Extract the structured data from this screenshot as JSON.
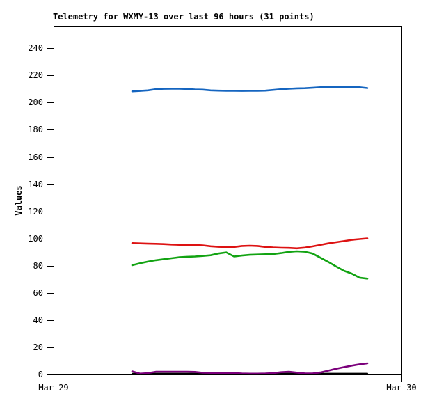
{
  "window": {
    "background": "#ffffff"
  },
  "chart_data": {
    "type": "line",
    "title": "Telemetry for WXMY-13 over last 96 hours (31 points)",
    "ylabel": "Values",
    "xlabel": "",
    "ylim": [
      0,
      256
    ],
    "y_ticks": [
      0,
      20,
      40,
      60,
      80,
      100,
      120,
      140,
      160,
      180,
      200,
      220,
      240
    ],
    "x_ticks": [
      {
        "label": "Mar 29",
        "frac": 0
      },
      {
        "label": "Mar 30",
        "frac": 1
      }
    ],
    "n_points": 31,
    "grid": false,
    "legend": "none",
    "axis_color": "#000000",
    "layout_hints": {
      "data_x_start_frac": 0.226,
      "data_x_end_frac": 0.902
    },
    "series": [
      {
        "name": "blue",
        "color": "#1565c0",
        "values": [
          208.3,
          208.6,
          209.0,
          209.8,
          210.1,
          210.2,
          210.2,
          210.0,
          209.6,
          209.5,
          209.0,
          208.8,
          208.7,
          208.7,
          208.6,
          208.7,
          208.7,
          208.8,
          209.3,
          209.8,
          210.2,
          210.5,
          210.6,
          210.9,
          211.3,
          211.5,
          211.5,
          211.4,
          211.3,
          211.3,
          210.7
        ]
      },
      {
        "name": "red",
        "color": "#dd1212",
        "values": [
          96.6,
          96.4,
          96.2,
          96.1,
          95.9,
          95.6,
          95.4,
          95.3,
          95.3,
          95.0,
          94.3,
          93.9,
          93.7,
          93.8,
          94.5,
          94.7,
          94.5,
          93.8,
          93.4,
          93.2,
          93.1,
          92.8,
          93.3,
          94.2,
          95.3,
          96.4,
          97.3,
          98.1,
          99.0,
          99.6,
          100.1
        ]
      },
      {
        "name": "green",
        "color": "#12a312",
        "values": [
          80.4,
          81.8,
          83.0,
          84.0,
          84.8,
          85.5,
          86.2,
          86.6,
          86.8,
          87.2,
          87.7,
          89.0,
          89.8,
          86.8,
          87.5,
          88.0,
          88.2,
          88.4,
          88.6,
          89.3,
          90.2,
          90.6,
          90.3,
          89.0,
          85.9,
          82.8,
          79.5,
          76.3,
          74.2,
          71.2,
          70.5
        ]
      },
      {
        "name": "black",
        "color": "#000000",
        "values": [
          0.7,
          0.7,
          0.7,
          0.7,
          0.7,
          0.7,
          0.7,
          0.7,
          0.7,
          0.7,
          0.7,
          0.7,
          0.7,
          0.7,
          0.7,
          0.7,
          0.7,
          0.7,
          0.7,
          0.7,
          0.7,
          0.7,
          0.7,
          0.7,
          0.7,
          0.7,
          0.7,
          0.7,
          0.7,
          0.7,
          0.7
        ]
      },
      {
        "name": "purple",
        "color": "#7b007b",
        "values": [
          2.3,
          0.6,
          1.0,
          2.0,
          2.0,
          2.0,
          2.0,
          2.0,
          1.9,
          1.3,
          1.2,
          1.2,
          1.2,
          1.1,
          0.7,
          0.6,
          0.6,
          0.7,
          1.0,
          1.7,
          2.0,
          1.4,
          0.8,
          0.7,
          1.5,
          2.8,
          4.2,
          5.4,
          6.5,
          7.5,
          8.2
        ]
      }
    ]
  }
}
